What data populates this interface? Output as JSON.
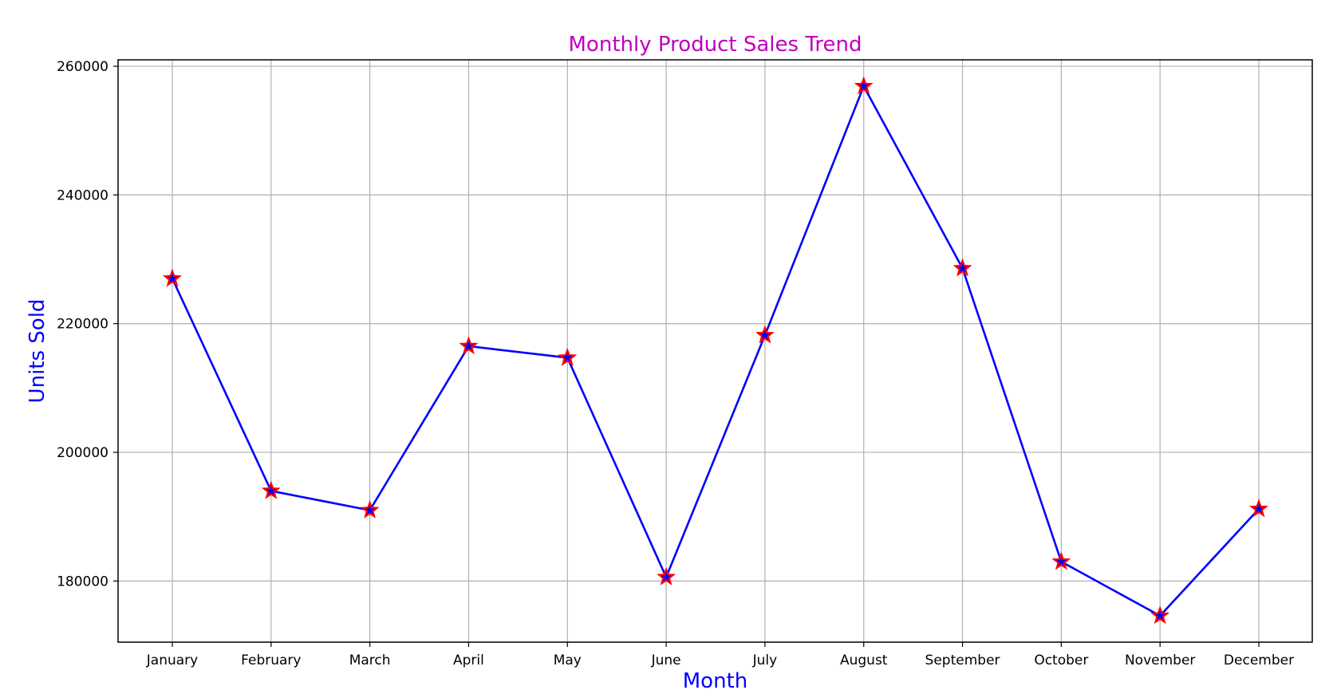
{
  "chart_data": {
    "type": "line",
    "title": "Monthly Product Sales Trend",
    "xlabel": "Month",
    "ylabel": "Units Sold",
    "categories": [
      "January",
      "February",
      "March",
      "April",
      "May",
      "June",
      "July",
      "August",
      "September",
      "October",
      "November",
      "December"
    ],
    "series": [
      {
        "values": [
          227000,
          194000,
          191000,
          216500,
          214700,
          180600,
          218200,
          256900,
          228600,
          183000,
          174600,
          191200
        ],
        "line_color": "#0000ff",
        "marker": "star",
        "marker_fill": "#0000ff",
        "marker_edge": "#ff0000"
      }
    ],
    "ylim": [
      170500,
      261000
    ],
    "yticks": [
      180000,
      200000,
      220000,
      240000,
      260000
    ],
    "ytick_labels": [
      "180000",
      "200000",
      "220000",
      "240000",
      "260000"
    ],
    "grid": true,
    "colors": {
      "title": "#bf00bf",
      "axis_label": "#0000ff",
      "grid": "#b0b0b0"
    }
  }
}
